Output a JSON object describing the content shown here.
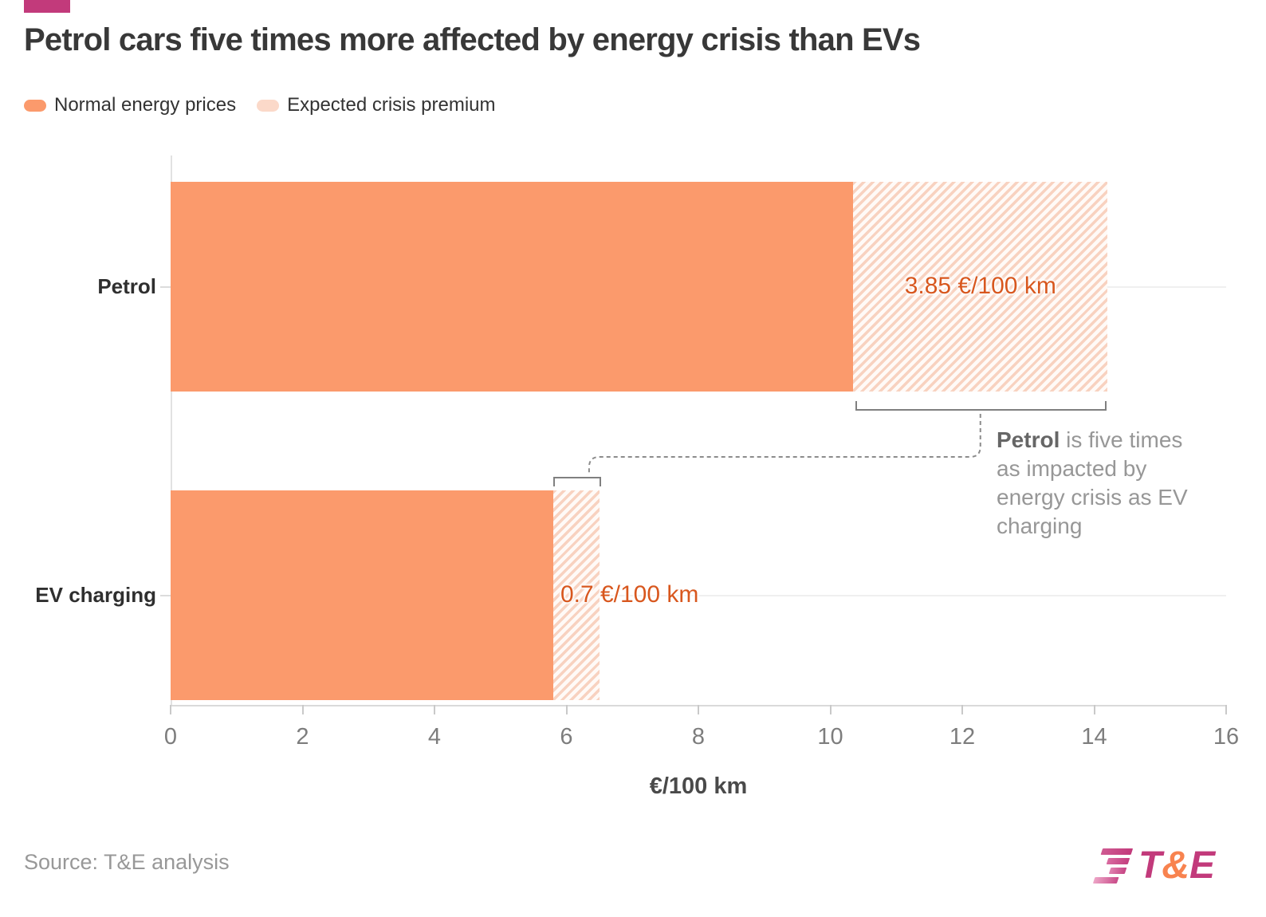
{
  "brand": {
    "color": "#c23a7b"
  },
  "header": {
    "title": "Petrol cars five times more affected by energy crisis than EVs"
  },
  "legend": {
    "items": [
      {
        "label": "Normal energy prices",
        "color": "#fb9a6c",
        "style": "solid"
      },
      {
        "label": "Expected crisis premium",
        "color": "#fbd9c9",
        "style": "premium"
      }
    ]
  },
  "chart_data": {
    "type": "bar",
    "orientation": "horizontal",
    "title": "Petrol cars five times more affected by energy crisis than EVs",
    "categories": [
      "Petrol",
      "EV charging"
    ],
    "series": [
      {
        "name": "Normal energy prices",
        "values": [
          10.35,
          5.8
        ]
      },
      {
        "name": "Expected crisis premium",
        "values": [
          3.85,
          0.7
        ]
      }
    ],
    "value_labels": [
      "3.85 €/100 km",
      "0.7 €/100 km"
    ],
    "value_label_align": [
      "center",
      "left"
    ],
    "xlabel": "€/100 km",
    "xlim": [
      0,
      16
    ],
    "xticks": [
      0,
      2,
      4,
      6,
      8,
      10,
      12,
      14,
      16
    ],
    "grid": "horizontal category gridlines only",
    "legend_position": "top-left",
    "colors": {
      "normal": "#fb9a6c",
      "premium_stripe": "#f8d2c0",
      "premium_background": "#fffaf7",
      "value_label": "#d8571e",
      "axis": "#dadada"
    }
  },
  "annotation": {
    "bold": "Petrol",
    "lines": [
      " is five times",
      "as impacted by",
      "energy crisis as EV",
      "charging"
    ]
  },
  "footer": {
    "source": "Source: T&E analysis",
    "logo": {
      "t": "T",
      "amp": "&",
      "e": "E"
    }
  }
}
